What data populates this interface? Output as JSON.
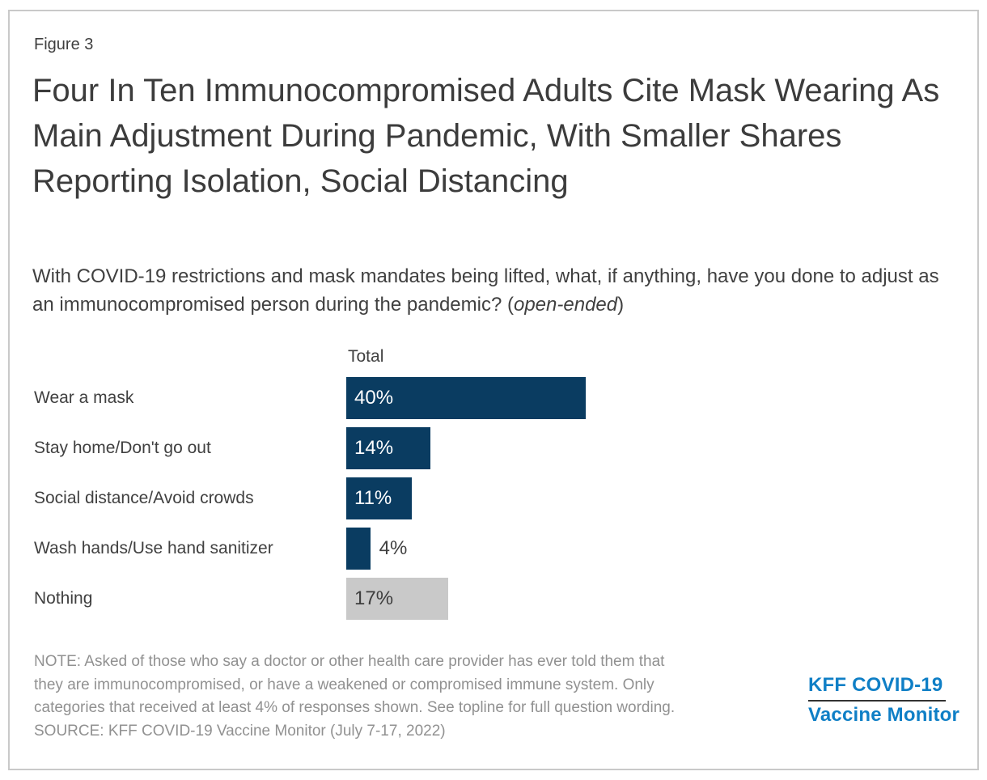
{
  "figure": {
    "label": "Figure 3"
  },
  "header": {
    "title": "Four In Ten Immunocompromised Adults Cite Mask Wearing As Main Adjustment During Pandemic, With Smaller Shares Reporting Isolation, Social Distancing",
    "subtitle_prefix": "With COVID-19 restrictions and mask mandates being lifted, what, if anything, have you done to adjust as an immunocompromised person during the pandemic? (",
    "subtitle_italic": "open-ended",
    "subtitle_suffix": ")"
  },
  "chart_data": {
    "type": "bar",
    "orientation": "horizontal",
    "column_header": "Total",
    "categories": [
      "Wear a mask",
      "Stay home/Don't go out",
      "Social distance/Avoid crowds",
      "Wash hands/Use hand sanitizer",
      "Nothing"
    ],
    "values": [
      40,
      14,
      11,
      4,
      17
    ],
    "value_labels": [
      "40%",
      "14%",
      "11%",
      "4%",
      "17%"
    ],
    "bar_colors": [
      "#0a3c61",
      "#0a3c61",
      "#0a3c61",
      "#0a3c61",
      "#c9c9c9"
    ],
    "value_label_colors": [
      "#ffffff",
      "#ffffff",
      "#ffffff",
      "#404040",
      "#3d3d3d"
    ],
    "value_label_outside": [
      false,
      false,
      false,
      true,
      false
    ],
    "xlim": [
      0,
      40
    ],
    "grid": false,
    "legend": "none",
    "accent_navy": "#0a3c61",
    "neutral_gray": "#c9c9c9"
  },
  "footer": {
    "note_lines": [
      "NOTE: Asked of those who say a doctor or other health care provider has ever told them that",
      "they are immunocompromised, or have a weakened or compromised immune system. Only",
      "categories that received at least 4% of responses shown. See topline for full question wording.",
      "SOURCE: KFF COVID-19 Vaccine Monitor (July 7-17, 2022)"
    ]
  },
  "logo": {
    "line1": "KFF COVID-19",
    "line2": "Vaccine Monitor",
    "color": "#0f7fc6"
  }
}
